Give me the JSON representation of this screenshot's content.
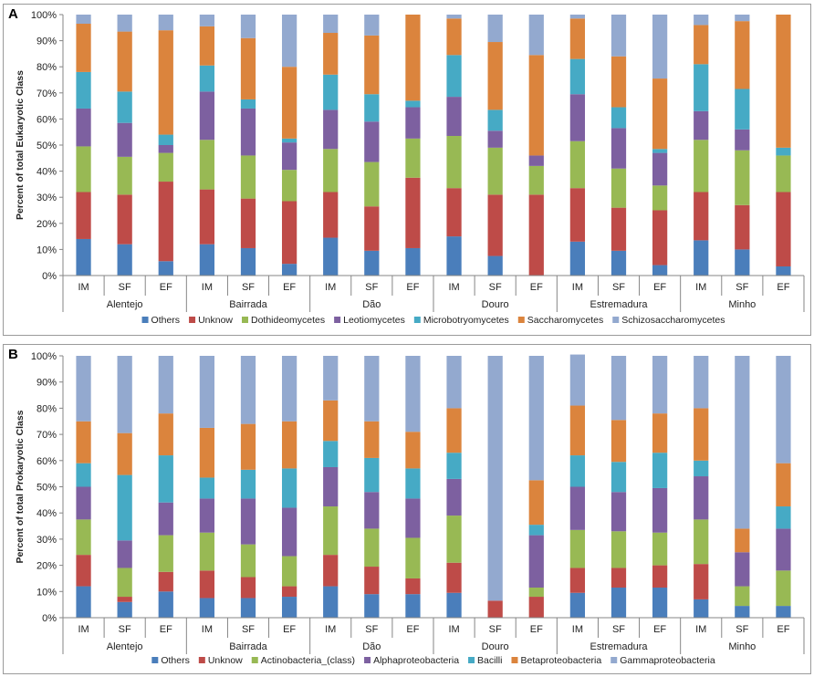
{
  "chart_data": [
    {
      "type": "bar",
      "stacked": true,
      "panel_label": "A",
      "ylabel": "Percent of total Eukaryotic Class",
      "ylim": [
        0,
        100
      ],
      "yticks": [
        "0%",
        "10%",
        "20%",
        "30%",
        "40%",
        "50%",
        "60%",
        "70%",
        "80%",
        "90%",
        "100%"
      ],
      "groups": [
        {
          "name": "Alentejo",
          "categories": [
            "IM",
            "SF",
            "EF"
          ]
        },
        {
          "name": "Bairrada",
          "categories": [
            "IM",
            "SF",
            "EF"
          ]
        },
        {
          "name": "Dão",
          "categories": [
            "IM",
            "SF",
            "EF"
          ]
        },
        {
          "name": "Douro",
          "categories": [
            "IM",
            "SF",
            "EF"
          ]
        },
        {
          "name": "Estremadura",
          "categories": [
            "IM",
            "SF",
            "EF"
          ]
        },
        {
          "name": "Minho",
          "categories": [
            "IM",
            "SF",
            "EF"
          ]
        }
      ],
      "series": [
        {
          "name": "Others",
          "color": "#4A7EBB",
          "values": [
            14,
            12,
            5.5,
            12,
            10.5,
            4.5,
            14.5,
            9.5,
            10.5,
            15,
            7.5,
            0,
            13,
            9.5,
            4,
            13.5,
            10,
            3.5
          ]
        },
        {
          "name": "Unknow",
          "color": "#BE4B48",
          "values": [
            18,
            19,
            30.5,
            21,
            19,
            24,
            17.5,
            17,
            27,
            18.5,
            23.5,
            31,
            20.5,
            16.5,
            21,
            18.5,
            17,
            28.5
          ]
        },
        {
          "name": "Dothideomycetes",
          "color": "#98B954",
          "values": [
            17.5,
            14.5,
            11,
            19,
            16.5,
            12,
            16.5,
            17,
            15,
            20,
            18,
            11,
            18,
            15,
            9.5,
            20,
            21,
            14
          ]
        },
        {
          "name": "Leotiomycetes",
          "color": "#7D60A0",
          "values": [
            14.5,
            13,
            3,
            18.5,
            18,
            10.5,
            15,
            15.5,
            12,
            15,
            6.5,
            4,
            18,
            15.5,
            12.5,
            11,
            8,
            0
          ]
        },
        {
          "name": "Microbotryomycetes",
          "color": "#46AAC5",
          "values": [
            14,
            12,
            4,
            10,
            3.5,
            1.5,
            13.5,
            10.5,
            2.5,
            16,
            8,
            0,
            13.5,
            8,
            1.5,
            18,
            15.5,
            3
          ]
        },
        {
          "name": "Saccharomycetes",
          "color": "#DB843D",
          "values": [
            18.5,
            23,
            40,
            15,
            23.5,
            27.5,
            16,
            22.5,
            33,
            14,
            26,
            38.5,
            15.5,
            19.5,
            27,
            15,
            26,
            51
          ]
        },
        {
          "name": "Schizosaccharomycetes",
          "color": "#93A9CF",
          "values": [
            3.5,
            6.5,
            6,
            4.5,
            9,
            20,
            7,
            8,
            0,
            1.5,
            10.5,
            15.5,
            1.5,
            16,
            24.5,
            4,
            2.5,
            0
          ]
        }
      ]
    },
    {
      "type": "bar",
      "stacked": true,
      "panel_label": "B",
      "ylabel": "Percent of total Prokaryotic Class",
      "ylim": [
        0,
        100
      ],
      "yticks": [
        "0%",
        "10%",
        "20%",
        "30%",
        "40%",
        "50%",
        "60%",
        "70%",
        "80%",
        "90%",
        "100%"
      ],
      "groups": [
        {
          "name": "Alentejo",
          "categories": [
            "IM",
            "SF",
            "EF"
          ]
        },
        {
          "name": "Bairrada",
          "categories": [
            "IM",
            "SF",
            "EF"
          ]
        },
        {
          "name": "Dão",
          "categories": [
            "IM",
            "SF",
            "EF"
          ]
        },
        {
          "name": "Douro",
          "categories": [
            "IM",
            "SF",
            "EF"
          ]
        },
        {
          "name": "Estremadura",
          "categories": [
            "IM",
            "SF",
            "EF"
          ]
        },
        {
          "name": "Minho",
          "categories": [
            "IM",
            "SF",
            "EF"
          ]
        }
      ],
      "series": [
        {
          "name": "Others",
          "color": "#4A7EBB",
          "values": [
            12,
            6,
            10,
            7.5,
            7.5,
            8,
            12,
            9,
            9,
            9.5,
            0,
            0,
            9.5,
            11.5,
            11.5,
            7,
            4.5,
            4.5
          ]
        },
        {
          "name": "Unknow",
          "color": "#BE4B48",
          "values": [
            12,
            2,
            7.5,
            10.5,
            8,
            4,
            12,
            10.5,
            6,
            11.5,
            6.5,
            8,
            9.5,
            7.5,
            8.5,
            13.5,
            0,
            0
          ]
        },
        {
          "name": "Actinobacteria_(class)",
          "color": "#98B954",
          "values": [
            13.5,
            11,
            14,
            14.5,
            12.5,
            11.5,
            18.5,
            14.5,
            15.5,
            18,
            0,
            3.5,
            14.5,
            14,
            12.5,
            17,
            7.5,
            13.5
          ]
        },
        {
          "name": "Alphaproteobacteria",
          "color": "#7D60A0",
          "values": [
            12.5,
            10.5,
            12.5,
            13,
            17.5,
            18.5,
            15,
            14,
            15,
            14,
            0,
            20,
            16.5,
            15,
            17,
            16.5,
            13,
            16
          ]
        },
        {
          "name": "Bacilli",
          "color": "#46AAC5",
          "values": [
            9,
            25,
            18,
            8,
            11,
            15,
            10,
            13,
            11.5,
            10,
            0,
            4,
            12,
            11.5,
            13.5,
            6,
            0,
            8.5
          ]
        },
        {
          "name": "Betaproteobacteria",
          "color": "#DB843D",
          "values": [
            16,
            16,
            16,
            19,
            17.5,
            18,
            15.5,
            14,
            14,
            17,
            0,
            17,
            19,
            16,
            15,
            20,
            9,
            16.5
          ]
        },
        {
          "name": "Gammaproteobacteria",
          "color": "#93A9CF",
          "values": [
            25,
            29.5,
            22,
            27.5,
            26,
            25,
            17,
            25,
            29,
            20,
            93.5,
            47.5,
            19.5,
            24.5,
            22,
            20,
            66,
            41
          ]
        }
      ]
    }
  ]
}
